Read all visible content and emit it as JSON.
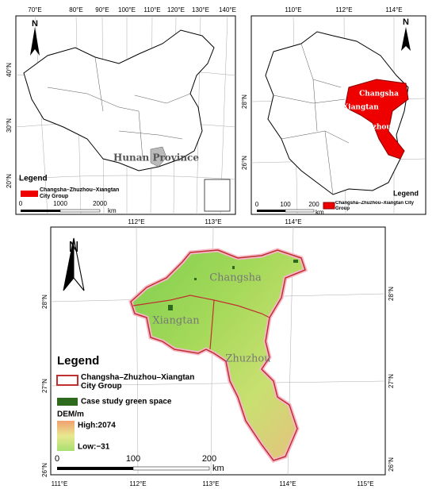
{
  "overview": {
    "lon_labels": [
      "70°E",
      "80°E",
      "90°E",
      "100°E",
      "110°E",
      "120°E",
      "130°E",
      "140°E"
    ],
    "lat_labels": [
      "40°N",
      "30°N",
      "20°N"
    ],
    "north": "N",
    "province_label": "Hunan Province",
    "legend_title": "Legend",
    "legend_item": "Changsha–Zhuzhou–Xiangtan City Group",
    "scale_labels": [
      "0",
      "1000",
      "2000"
    ],
    "scale_unit": "km"
  },
  "hunan": {
    "lon_labels": [
      "110°E",
      "112°E",
      "114°E"
    ],
    "lat_labels": [
      "28°N",
      "26°N"
    ],
    "north": "N",
    "city_labels": [
      "Changsha",
      "Xiangtan",
      "Zhuzhou"
    ],
    "legend_title": "Legend",
    "legend_item": "Changsha–Zhuzhou–Xiangtan City Group",
    "scale_labels": [
      "0",
      "100",
      "200"
    ],
    "scale_unit": "km"
  },
  "study": {
    "top_lon_labels": [
      "112°E",
      "113°E",
      "114°E"
    ],
    "bottom_lon_labels": [
      "111°E",
      "112°E",
      "113°E",
      "114°E",
      "115°E"
    ],
    "left_lat_labels": [
      "28°N",
      "27°N",
      "26°N"
    ],
    "right_lat_labels": [
      "28°N",
      "27°N",
      "26°N"
    ],
    "north": "N",
    "city_labels": [
      "Changsha",
      "Xiangtan",
      "Zhuzhou"
    ],
    "legend_title": "Legend",
    "legend_items": [
      "Changsha–Zhuzhou–Xiangtan City Group",
      "Case study green space"
    ],
    "dem_title": "DEM/m",
    "dem_high": "High:2074",
    "dem_low": "Low:−31",
    "scale_labels": [
      "0",
      "100",
      "200"
    ],
    "scale_unit": "km"
  }
}
